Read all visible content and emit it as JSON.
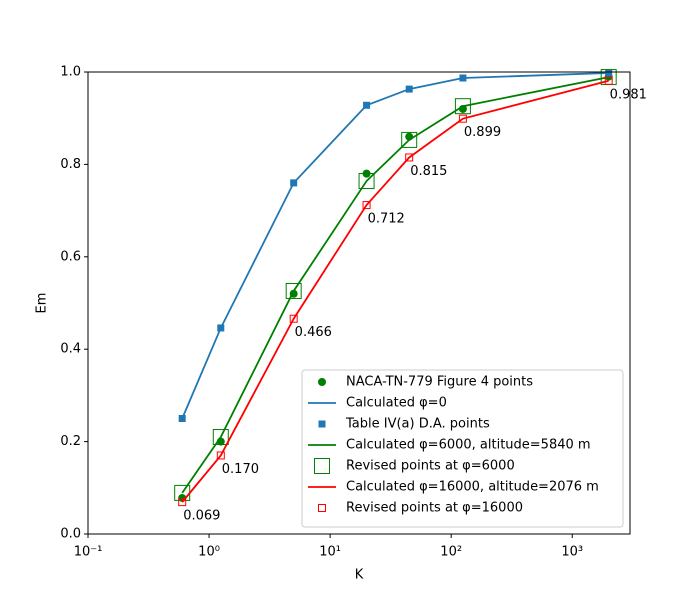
{
  "chart_data": {
    "type": "line",
    "xlabel": "K",
    "ylabel": "Em",
    "xscale": "log",
    "x": [
      0.6,
      1.25,
      5,
      20,
      45,
      125,
      2000
    ],
    "xlim": [
      0.1,
      3000
    ],
    "xticks": [
      {
        "value": 0.1,
        "label": "10⁻¹"
      },
      {
        "value": 1,
        "label": "10⁰"
      },
      {
        "value": 10,
        "label": "10¹"
      },
      {
        "value": 100,
        "label": "10²"
      },
      {
        "value": 1000,
        "label": "10³"
      }
    ],
    "ylim": [
      0,
      1
    ],
    "yticks": [
      {
        "value": 0,
        "label": "0.0"
      },
      0.2,
      0.4,
      0.6,
      0.8,
      {
        "value": 1,
        "label": "1.0"
      }
    ],
    "legend": "lower right",
    "series": [
      {
        "name": "NACA-TN-779 Figure 4 points",
        "color": "green",
        "marker": "circle",
        "line": false,
        "values": [
          0.078,
          0.2,
          0.52,
          0.78,
          0.86,
          0.92,
          0.99
        ]
      },
      {
        "name": "Calculated φ=0",
        "color": "#1f77b4",
        "marker": "none",
        "line": true,
        "values": [
          0.25,
          0.446,
          0.76,
          0.928,
          0.963,
          0.987,
          0.998
        ]
      },
      {
        "name": "Table IV(a) D.A. points",
        "color": "#1f77b4",
        "marker": "square",
        "line": false,
        "values": [
          0.25,
          0.446,
          0.76,
          0.928,
          0.963,
          0.987,
          0.998
        ]
      },
      {
        "name": "Calculated φ=6000, altitude=5840 m",
        "color": "green",
        "marker": "none",
        "line": true,
        "values": [
          0.089,
          0.21,
          0.526,
          0.764,
          0.853,
          0.926,
          0.989
        ]
      },
      {
        "name": "Revised points at φ=6000",
        "color": "green",
        "marker": "open-square-large",
        "line": false,
        "values": [
          0.089,
          0.21,
          0.526,
          0.764,
          0.853,
          0.926,
          0.989
        ]
      },
      {
        "name": "Calculated φ=16000, altitude=2076 m",
        "color": "red",
        "marker": "none",
        "line": true,
        "values": [
          0.069,
          0.17,
          0.466,
          0.712,
          0.815,
          0.899,
          0.981
        ]
      },
      {
        "name": "Revised points at φ=16000",
        "color": "red",
        "marker": "open-square",
        "line": false,
        "values": [
          0.069,
          0.17,
          0.466,
          0.712,
          0.815,
          0.899,
          0.981
        ],
        "value_labels": [
          "0.069",
          "0.170",
          "0.466",
          "0.712",
          "0.815",
          "0.899",
          "0.981"
        ]
      }
    ]
  }
}
